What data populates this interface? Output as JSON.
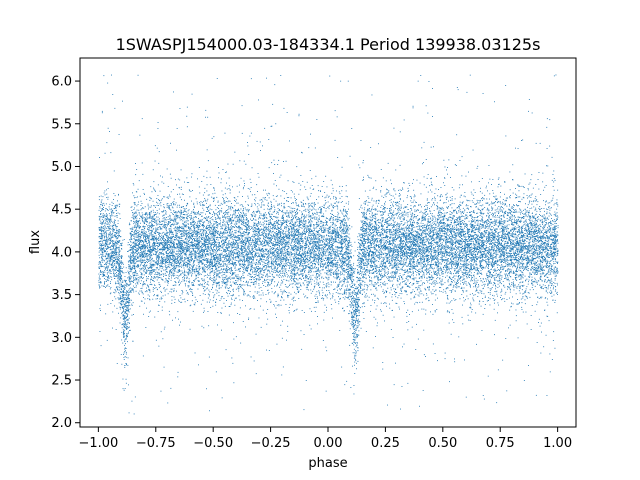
{
  "chart_data": {
    "type": "scatter",
    "title": "1SWASPJ154000.03-184334.1 Period 139938.03125s",
    "xlabel": "phase",
    "ylabel": "flux",
    "xlim": [
      -1.08,
      1.08
    ],
    "ylim": [
      1.95,
      6.27
    ],
    "xticks": [
      -1.0,
      -0.75,
      -0.5,
      -0.25,
      0.0,
      0.25,
      0.5,
      0.75,
      1.0
    ],
    "xtick_labels": [
      "−1.00",
      "−0.75",
      "−0.50",
      "−0.25",
      "0.00",
      "0.25",
      "0.50",
      "0.75",
      "1.00"
    ],
    "yticks": [
      2.0,
      2.5,
      3.0,
      3.5,
      4.0,
      4.5,
      5.0,
      5.5,
      6.0
    ],
    "ytick_labels": [
      "2.0",
      "2.5",
      "3.0",
      "3.5",
      "4.0",
      "4.5",
      "5.0",
      "5.5",
      "6.0"
    ],
    "grid": false,
    "marker_color": "#1f77b4",
    "series": [
      {
        "phase_range": [
          -1.0,
          1.0
        ],
        "baseline_flux": 4.07,
        "scatter_std": 0.28,
        "eclipses": [
          {
            "center_phase": -0.885,
            "min_flux": 3.2,
            "half_width_phase": 0.03
          },
          {
            "center_phase": 0.115,
            "min_flux": 3.2,
            "half_width_phase": 0.03
          }
        ]
      }
    ]
  }
}
